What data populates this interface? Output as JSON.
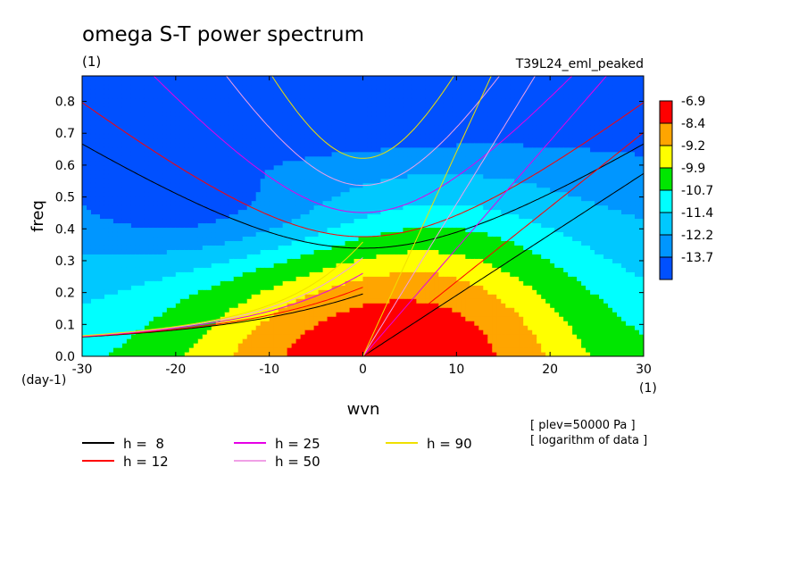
{
  "chart_data": {
    "type": "heatmap",
    "title": "omega S-T power spectrum",
    "subtitle": "(1)",
    "run_label": "T39L24_eml_peaked",
    "xlabel": "wvn",
    "ylabel": "freq",
    "x_unit": "(1)",
    "y_unit": "(day-1)",
    "xlim": [
      -30,
      30
    ],
    "ylim": [
      0,
      0.88
    ],
    "x_ticks": [
      "-30",
      "-20",
      "-10",
      "0",
      "10",
      "20",
      "30"
    ],
    "y_ticks": [
      "0.0",
      "0.1",
      "0.2",
      "0.3",
      "0.4",
      "0.5",
      "0.6",
      "0.7",
      "0.8"
    ],
    "colorbar": {
      "levels": [
        "-6.9",
        "-8.4",
        "-9.2",
        "-9.9",
        "-10.7",
        "-11.4",
        "-12.2",
        "-13.7"
      ],
      "colors": [
        "#ff0000",
        "#ffa500",
        "#ffff00",
        "#00e600",
        "#00ffff",
        "#00c8ff",
        "#0096ff",
        "#0050ff"
      ]
    },
    "notes": [
      "[ plev=50000 Pa ]",
      "[ logarithm of data ]"
    ],
    "series": [
      {
        "name": "h =  8",
        "h": 8,
        "color": "#000000"
      },
      {
        "name": "h = 12",
        "h": 12,
        "color": "#ff0000"
      },
      {
        "name": "h = 25",
        "h": 25,
        "color": "#e600e6"
      },
      {
        "name": "h = 50",
        "h": 50,
        "color": "#f0a0e6"
      },
      {
        "name": "h = 90",
        "h": 90,
        "color": "#f0e000"
      }
    ]
  }
}
